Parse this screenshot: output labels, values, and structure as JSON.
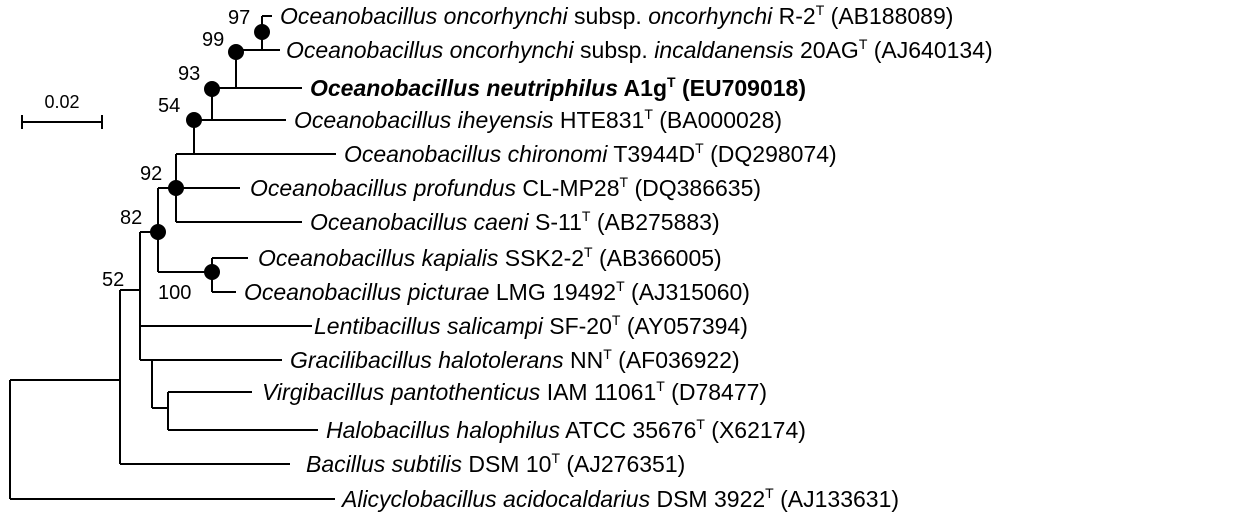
{
  "scale_bar": {
    "label": "0.02"
  },
  "taxa": [
    {
      "id": "t1",
      "genus_species": "Oceanobacillus oncorhynchi",
      "subsp_prefix": "subsp.",
      "subsp": "oncorhynchi",
      "strain": "R-2",
      "type_mark": "T",
      "accession": "(AB188089)",
      "bold": false
    },
    {
      "id": "t2",
      "genus_species": "Oceanobacillus oncorhynchi",
      "subsp_prefix": "subsp.",
      "subsp": "incaldanensis",
      "strain": "20AG",
      "type_mark": "T",
      "accession": "(AJ640134)",
      "bold": false
    },
    {
      "id": "t3",
      "genus_species": "Oceanobacillus neutriphilus",
      "strain": "A1g",
      "type_mark": "T",
      "accession": "(EU709018)",
      "bold": true
    },
    {
      "id": "t4",
      "genus_species": "Oceanobacillus iheyensis",
      "strain": "HTE831",
      "type_mark": "T",
      "accession": "(BA000028)",
      "bold": false
    },
    {
      "id": "t5",
      "genus_species": "Oceanobacillus chironomi",
      "strain": "T3944D",
      "type_mark": "T",
      "accession": "(DQ298074)",
      "bold": false
    },
    {
      "id": "t6",
      "genus_species": "Oceanobacillus profundus",
      "strain": "CL-MP28",
      "type_mark": "T",
      "accession": "(DQ386635)",
      "bold": false
    },
    {
      "id": "t7",
      "genus_species": "Oceanobacillus caeni",
      "strain": "S-11",
      "type_mark": "T",
      "accession": "(AB275883)",
      "bold": false
    },
    {
      "id": "t8",
      "genus_species": "Oceanobacillus kapialis",
      "strain": "SSK2-2",
      "type_mark": "T",
      "accession": "(AB366005)",
      "bold": false
    },
    {
      "id": "t9",
      "genus_species": "Oceanobacillus picturae",
      "strain": "LMG 19492",
      "type_mark": "T",
      "accession": "(AJ315060)",
      "bold": false
    },
    {
      "id": "t10",
      "genus_species": "Lentibacillus salicampi",
      "strain": "SF-20",
      "type_mark": "T",
      "accession": "(AY057394)",
      "bold": false
    },
    {
      "id": "t11",
      "genus_species": "Gracilibacillus halotolerans",
      "strain": "NN",
      "type_mark": "T",
      "accession": "(AF036922)",
      "bold": false
    },
    {
      "id": "t12",
      "genus_species": "Virgibacillus pantothenticus",
      "strain": "IAM 11061",
      "type_mark": "T",
      "accession": "(D78477)",
      "bold": false
    },
    {
      "id": "t13",
      "genus_species": "Halobacillus halophilus",
      "strain": "ATCC 35676",
      "type_mark": "T",
      "accession": "(X62174)",
      "bold": false
    },
    {
      "id": "t14",
      "genus_species": "Bacillus subtilis",
      "strain": "DSM 10",
      "type_mark": "T",
      "accession": "(AJ276351)",
      "bold": false
    },
    {
      "id": "t15",
      "genus_species": "Alicyclobacillus acidocaldarius",
      "strain": "DSM 3922",
      "type_mark": "T",
      "accession": "(AJ133631)",
      "bold": false
    }
  ],
  "bootstrap": [
    {
      "id": "b97",
      "value": "97"
    },
    {
      "id": "b99",
      "value": "99"
    },
    {
      "id": "b93",
      "value": "93"
    },
    {
      "id": "b54",
      "value": "54"
    },
    {
      "id": "b92",
      "value": "92"
    },
    {
      "id": "b82",
      "value": "82"
    },
    {
      "id": "b100",
      "value": "100"
    },
    {
      "id": "b52",
      "value": "52"
    }
  ]
}
